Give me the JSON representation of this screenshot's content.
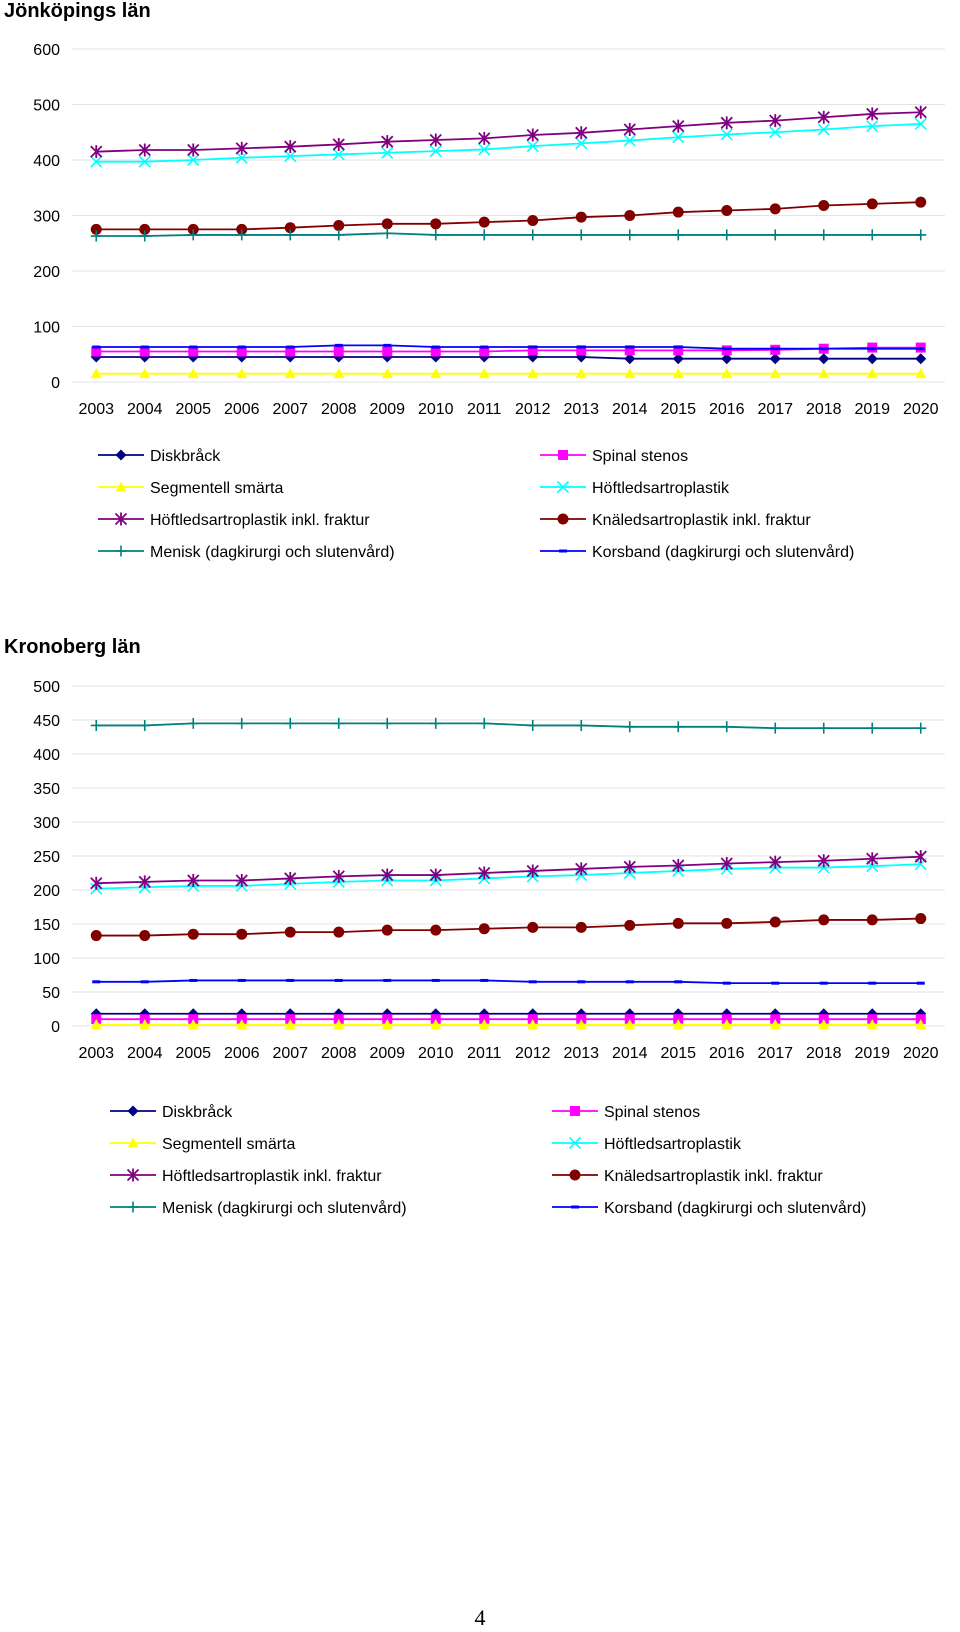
{
  "page_number": "4",
  "chart_data": [
    {
      "type": "line",
      "title": "Jönköpings län",
      "xlabel": "",
      "ylabel": "",
      "ylim": [
        0,
        600
      ],
      "yticks": [
        0,
        100,
        200,
        300,
        400,
        500,
        600
      ],
      "grid": true,
      "legend_position": "bottom",
      "categories": [
        "2003",
        "2004",
        "2005",
        "2006",
        "2007",
        "2008",
        "2009",
        "2010",
        "2011",
        "2012",
        "2013",
        "2014",
        "2015",
        "2016",
        "2017",
        "2018",
        "2019",
        "2020"
      ],
      "series": [
        {
          "name": "Diskbråck",
          "color": "#000080",
          "marker": "diamond",
          "values": [
            45,
            45,
            45,
            45,
            45,
            45,
            45,
            45,
            45,
            45,
            45,
            42,
            42,
            42,
            42,
            42,
            42,
            42
          ]
        },
        {
          "name": "Spinal stenos",
          "color": "#ff00ff",
          "marker": "square",
          "values": [
            55,
            55,
            55,
            55,
            55,
            55,
            55,
            55,
            55,
            57,
            57,
            57,
            57,
            57,
            58,
            60,
            62,
            62
          ]
        },
        {
          "name": "Segmentell smärta",
          "color": "#ffff00",
          "marker": "triangle",
          "values": [
            15,
            15,
            15,
            15,
            15,
            15,
            15,
            15,
            15,
            15,
            15,
            15,
            15,
            15,
            15,
            15,
            15,
            15
          ]
        },
        {
          "name": "Höftledsartroplastik",
          "color": "#00ffff",
          "marker": "x",
          "values": [
            397,
            397,
            400,
            404,
            407,
            410,
            413,
            416,
            419,
            425,
            430,
            435,
            441,
            446,
            450,
            455,
            461,
            465
          ]
        },
        {
          "name": "Höftledsartroplastik inkl. fraktur",
          "color": "#800080",
          "marker": "asterisk",
          "values": [
            415,
            418,
            418,
            421,
            424,
            428,
            433,
            436,
            439,
            445,
            449,
            455,
            461,
            467,
            471,
            477,
            483,
            486
          ]
        },
        {
          "name": "Knäledsartroplastik inkl. fraktur",
          "color": "#800000",
          "marker": "circle",
          "values": [
            275,
            275,
            275,
            275,
            278,
            282,
            285,
            285,
            288,
            291,
            297,
            300,
            306,
            309,
            312,
            318,
            321,
            324
          ]
        },
        {
          "name": "Menisk (dagkirurgi och slutenvård)",
          "color": "#008080",
          "marker": "plus",
          "values": [
            263,
            263,
            265,
            265,
            265,
            265,
            268,
            265,
            265,
            265,
            265,
            265,
            265,
            265,
            265,
            265,
            265,
            265
          ]
        },
        {
          "name": "Korsband (dagkirurgi och slutenvård)",
          "color": "#0000ff",
          "marker": "dash",
          "values": [
            63,
            63,
            63,
            63,
            63,
            66,
            66,
            63,
            63,
            63,
            63,
            63,
            63,
            60,
            60,
            60,
            60,
            60
          ]
        }
      ]
    },
    {
      "type": "line",
      "title": "Kronoberg län",
      "xlabel": "",
      "ylabel": "",
      "ylim": [
        0,
        500
      ],
      "yticks": [
        0,
        50,
        100,
        150,
        200,
        250,
        300,
        350,
        400,
        450,
        500
      ],
      "grid": true,
      "legend_position": "bottom",
      "categories": [
        "2003",
        "2004",
        "2005",
        "2006",
        "2007",
        "2008",
        "2009",
        "2010",
        "2011",
        "2012",
        "2013",
        "2014",
        "2015",
        "2016",
        "2017",
        "2018",
        "2019",
        "2020"
      ],
      "series": [
        {
          "name": "Diskbråck",
          "color": "#000080",
          "marker": "diamond",
          "values": [
            18,
            18,
            18,
            18,
            18,
            18,
            18,
            18,
            18,
            18,
            18,
            18,
            18,
            18,
            18,
            18,
            18,
            18
          ]
        },
        {
          "name": "Spinal stenos",
          "color": "#ff00ff",
          "marker": "square",
          "values": [
            10,
            10,
            10,
            10,
            10,
            10,
            10,
            10,
            10,
            10,
            10,
            10,
            10,
            10,
            10,
            10,
            10,
            10
          ]
        },
        {
          "name": "Segmentell smärta",
          "color": "#ffff00",
          "marker": "triangle",
          "values": [
            2,
            2,
            2,
            2,
            2,
            2,
            2,
            2,
            2,
            2,
            2,
            2,
            2,
            2,
            2,
            2,
            2,
            2
          ]
        },
        {
          "name": "Höftledsartroplastik",
          "color": "#00ffff",
          "marker": "x",
          "values": [
            202,
            204,
            206,
            206,
            209,
            212,
            214,
            214,
            217,
            220,
            222,
            225,
            228,
            231,
            233,
            233,
            235,
            238
          ]
        },
        {
          "name": "Höftledsartroplastik inkl. fraktur",
          "color": "#800080",
          "marker": "asterisk",
          "values": [
            210,
            212,
            214,
            214,
            217,
            220,
            222,
            222,
            225,
            228,
            231,
            234,
            236,
            239,
            241,
            243,
            246,
            249
          ]
        },
        {
          "name": "Knäledsartroplastik inkl. fraktur",
          "color": "#800000",
          "marker": "circle",
          "values": [
            133,
            133,
            135,
            135,
            138,
            138,
            141,
            141,
            143,
            145,
            145,
            148,
            151,
            151,
            153,
            156,
            156,
            158
          ]
        },
        {
          "name": "Menisk (dagkirurgi och slutenvård)",
          "color": "#008080",
          "marker": "plus",
          "values": [
            442,
            442,
            445,
            445,
            445,
            445,
            445,
            445,
            445,
            442,
            442,
            440,
            440,
            440,
            438,
            438,
            438,
            438
          ]
        },
        {
          "name": "Korsband (dagkirurgi och slutenvård)",
          "color": "#0000ff",
          "marker": "dash",
          "values": [
            65,
            65,
            67,
            67,
            67,
            67,
            67,
            67,
            67,
            65,
            65,
            65,
            65,
            63,
            63,
            63,
            63,
            63
          ]
        }
      ]
    }
  ]
}
